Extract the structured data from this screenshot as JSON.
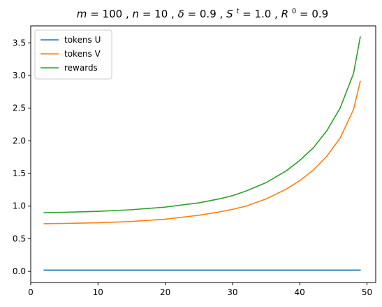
{
  "chart_data": {
    "type": "line",
    "title": "m = 100, n = 10, δ = 0.9, Sᵗ = 1.0, R⁰ = 0.9",
    "title_parts": {
      "m_name": "m",
      "m_value": "100",
      "n_name": "n",
      "n_value": "10",
      "delta_name": "δ",
      "delta_value": "0.9",
      "s_name": "S",
      "s_sup": "t",
      "s_value": "1.0",
      "r_name": "R",
      "r_sup": "0",
      "r_value": "0.9"
    },
    "xlabel": "",
    "ylabel": "",
    "xlim": [
      0,
      51.3
    ],
    "ylim": [
      -0.17,
      3.76
    ],
    "xticks": [
      0,
      10,
      20,
      30,
      40,
      50
    ],
    "yticks": [
      0.0,
      0.5,
      1.0,
      1.5,
      2.0,
      2.5,
      3.0,
      3.5
    ],
    "xtick_labels": [
      "0",
      "10",
      "20",
      "30",
      "40",
      "50"
    ],
    "ytick_labels": [
      "0.0",
      "0.5",
      "1.0",
      "1.5",
      "2.0",
      "2.5",
      "3.0",
      "3.5"
    ],
    "grid": false,
    "legend": {
      "placement": "top-left"
    },
    "series": [
      {
        "name": "tokens U",
        "color": "#1f77b4",
        "x": [
          2,
          5,
          10,
          15,
          20,
          25,
          30,
          35,
          40,
          45,
          49
        ],
        "y": [
          0.02,
          0.02,
          0.02,
          0.02,
          0.02,
          0.02,
          0.02,
          0.02,
          0.02,
          0.02,
          0.02
        ]
      },
      {
        "name": "tokens V",
        "color": "#ff7f0e",
        "x": [
          2,
          5,
          10,
          15,
          20,
          25,
          28,
          30,
          32,
          35,
          38,
          40,
          42,
          44,
          46,
          48,
          49
        ],
        "y": [
          0.73,
          0.735,
          0.745,
          0.765,
          0.8,
          0.86,
          0.91,
          0.95,
          1.0,
          1.11,
          1.26,
          1.39,
          1.55,
          1.76,
          2.04,
          2.48,
          2.91
        ]
      },
      {
        "name": "rewards",
        "color": "#2ca02c",
        "x": [
          2,
          5,
          10,
          15,
          20,
          25,
          28,
          30,
          32,
          35,
          38,
          40,
          42,
          44,
          46,
          48,
          49
        ],
        "y": [
          0.9,
          0.905,
          0.92,
          0.945,
          0.985,
          1.05,
          1.11,
          1.16,
          1.23,
          1.36,
          1.54,
          1.7,
          1.89,
          2.15,
          2.5,
          3.03,
          3.59
        ]
      }
    ]
  }
}
